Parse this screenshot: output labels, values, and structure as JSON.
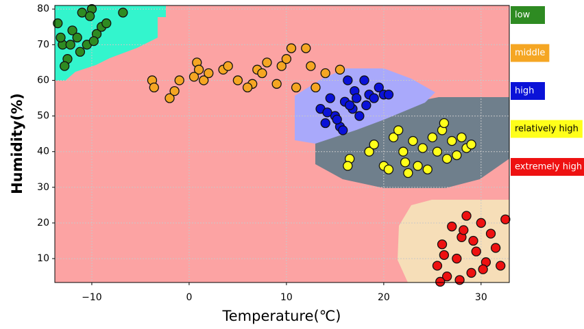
{
  "chart_data": {
    "type": "scatter",
    "x_label": "Temperature(℃)",
    "y_label": "Humidity(%)",
    "xlim": [
      -13.8,
      32.9
    ],
    "ylim": [
      3.3,
      81
    ],
    "xticks": [
      {
        "value": -10,
        "label": "−10"
      },
      0,
      10,
      20,
      30
    ],
    "yticks": [
      10,
      20,
      30,
      40,
      50,
      60,
      70,
      80
    ],
    "grid": true,
    "series": [
      {
        "name": "low",
        "color": "#2e8b22",
        "x": [
          -13.5,
          -13,
          -12.5,
          -12,
          -11.5,
          -11,
          -10.5,
          -10,
          -9.5,
          -9,
          -8.5,
          -12.8,
          -11.2,
          -10.2,
          -9.8,
          -6.8,
          -13.2,
          -12.2
        ],
        "y": [
          76,
          70,
          66,
          74,
          72,
          79,
          70,
          80,
          73,
          75,
          76,
          64,
          68,
          78,
          71,
          79,
          72,
          70
        ]
      },
      {
        "name": "middle",
        "color": "#f5a623",
        "x": [
          -3.8,
          -3.6,
          -2,
          -1.5,
          -1,
          0.8,
          1,
          1.5,
          2,
          3.5,
          4,
          5,
          6.5,
          7,
          7.5,
          8,
          9,
          9.5,
          10,
          10.5,
          11,
          12,
          12.5,
          13,
          14,
          15.5,
          0.5,
          6
        ],
        "y": [
          60,
          58,
          55,
          57,
          60,
          65,
          63,
          60,
          62,
          63,
          64,
          60,
          59,
          63,
          62,
          65,
          59,
          64,
          66,
          69,
          58,
          69,
          64,
          58,
          62,
          63,
          61,
          58
        ]
      },
      {
        "name": "high",
        "color": "#0a12d8",
        "x": [
          13.5,
          14,
          14.5,
          15,
          15.5,
          16,
          16.3,
          16.8,
          17,
          17.5,
          18,
          18.5,
          19,
          19.5,
          20,
          20.5,
          14.2,
          15.2,
          16.5,
          17.2,
          18.2,
          15.8
        ],
        "y": [
          52,
          48,
          55,
          50,
          47,
          54,
          60,
          52,
          57,
          50,
          60,
          56,
          55,
          58,
          56,
          56,
          51,
          49,
          53,
          55,
          53,
          46
        ]
      },
      {
        "name": "relatively high",
        "color": "#ffff1a",
        "x": [
          16.5,
          18.5,
          19,
          20,
          20.5,
          21,
          21.5,
          22,
          22.5,
          23,
          23.5,
          24,
          24.5,
          25,
          25.5,
          26,
          26.5,
          27,
          27.5,
          28,
          28.5,
          29,
          16.3,
          22.2,
          26.2
        ],
        "y": [
          38,
          40,
          42,
          36,
          35,
          44,
          46,
          40,
          34,
          43,
          36,
          41,
          35,
          44,
          40,
          46,
          38,
          43,
          39,
          44,
          41,
          42,
          36,
          37,
          48
        ]
      },
      {
        "name": "extremely high",
        "color": "#ee1111",
        "x": [
          25.5,
          26,
          26.5,
          27,
          27.5,
          28,
          28.5,
          29,
          29.5,
          30,
          30.5,
          31,
          31.5,
          32,
          32.5,
          26.2,
          27.8,
          29.2,
          30.2,
          28.2,
          25.8
        ],
        "y": [
          8,
          14,
          5,
          19,
          10,
          16,
          22,
          6,
          12,
          20,
          9,
          17,
          13,
          8,
          21,
          11,
          4,
          15,
          7,
          18,
          3.5
        ]
      }
    ]
  }
}
